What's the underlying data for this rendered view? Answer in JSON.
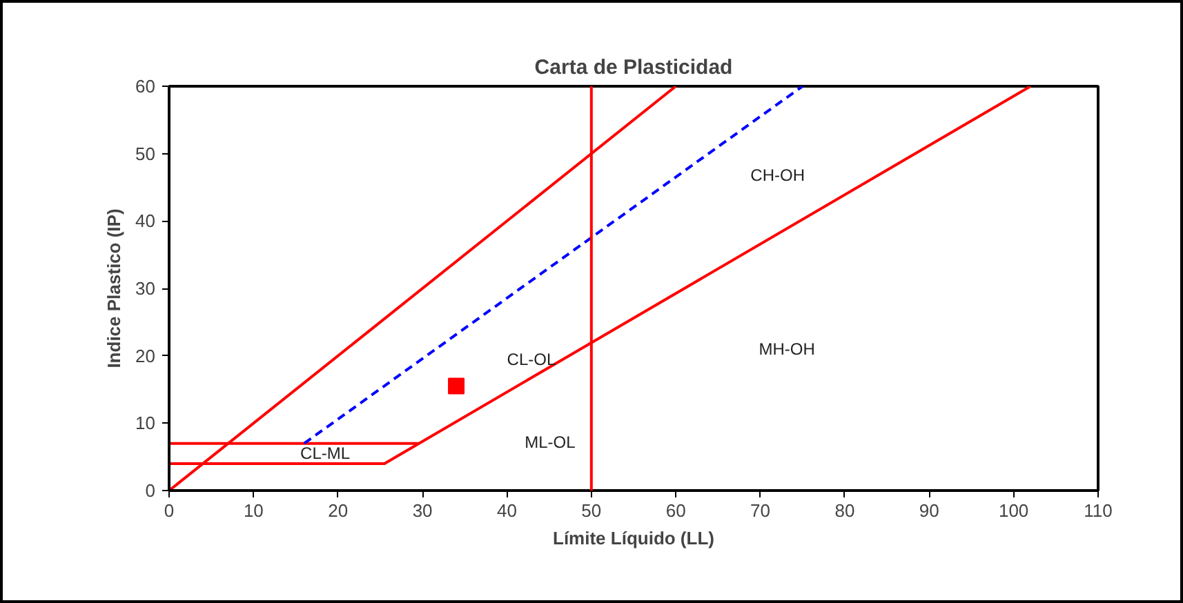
{
  "chart_data": {
    "type": "line",
    "title": "Carta de Plasticidad",
    "xlabel": "Límite Líquido (LL)",
    "ylabel": "Indice Plastico (IP)",
    "xlim": [
      0,
      110
    ],
    "ylim": [
      0,
      60
    ],
    "xticks": [
      0,
      10,
      20,
      30,
      40,
      50,
      60,
      70,
      80,
      90,
      100,
      110
    ],
    "yticks": [
      0,
      10,
      20,
      30,
      40,
      50,
      60
    ],
    "grid": false,
    "line_style": "solid",
    "marker": "none",
    "series": [
      {
        "color": "#ff0000",
        "x": [
          0,
          60
        ],
        "values": [
          0,
          60
        ]
      },
      {
        "color": "#ff0000",
        "x": [
          0,
          25.5,
          102
        ],
        "values": [
          4,
          4,
          60
        ]
      },
      {
        "color": "#ff0000",
        "x": [
          0,
          29.5
        ],
        "values": [
          7,
          7
        ]
      },
      {
        "color": "#0000ff",
        "line_style": "dashed",
        "x": [
          16,
          75
        ],
        "values": [
          7,
          60
        ]
      },
      {
        "type": "scatter",
        "color": "#ff0000",
        "marker": "square",
        "x": [
          34
        ],
        "values": [
          15.5
        ]
      }
    ],
    "ref_lines": [
      {
        "axis": "x",
        "value": 50,
        "color": "#ff0000"
      }
    ],
    "annotations": [
      "CH-OH",
      "MH-OH",
      "CL-OL",
      "ML-OL",
      "CL-ML"
    ]
  }
}
